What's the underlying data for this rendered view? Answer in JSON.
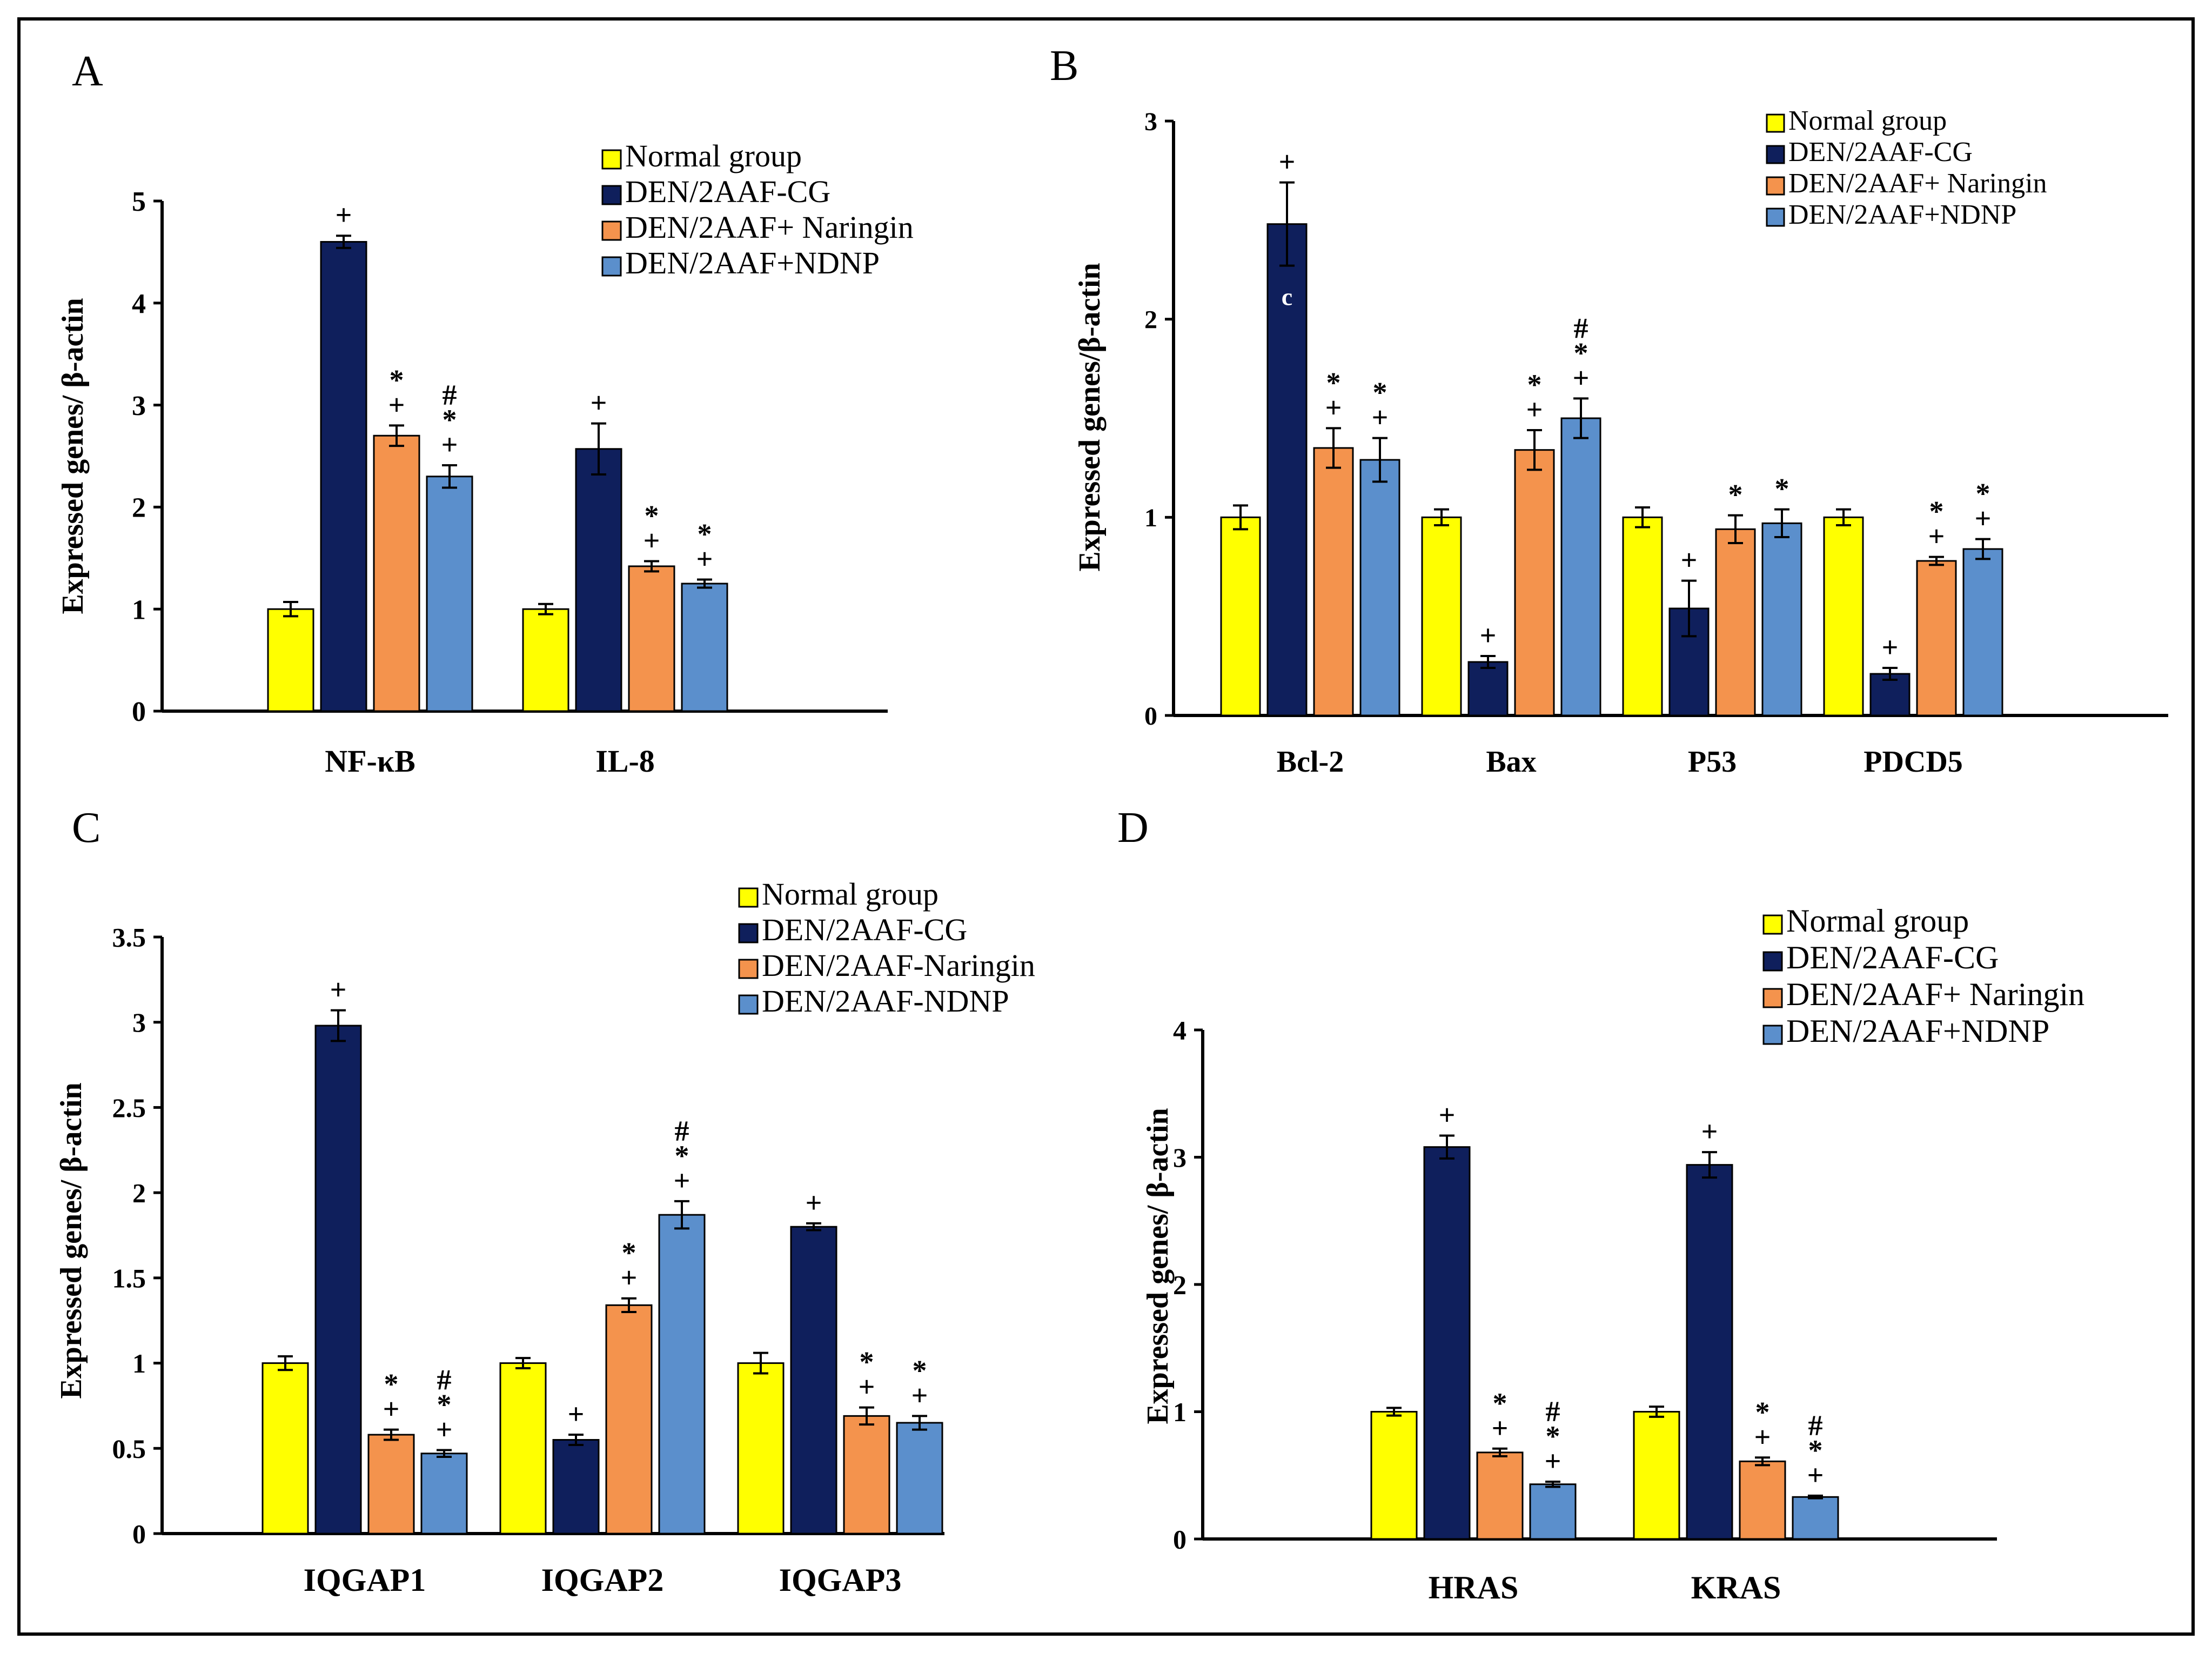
{
  "colors": {
    "normal": "#FFFF00",
    "den_cg": "#0F1F5C",
    "naringin": "#F4934D",
    "ndnp": "#5B8FCC",
    "axis": "#000000"
  },
  "chart_data": [
    {
      "panel": "A",
      "type": "bar",
      "title": "",
      "xlabel": "",
      "ylabel": "Expressed genes/ β-actin",
      "ylim": [
        0,
        5
      ],
      "yticks": [
        "0",
        "1",
        "2",
        "3",
        "4",
        "5"
      ],
      "categories": [
        "NF-κB",
        "IL-8"
      ],
      "legend": [
        "Normal group",
        "DEN/2AAF-CG",
        "DEN/2AAF+ Naringin",
        "DEN/2AAF+NDNP"
      ],
      "series": [
        {
          "name": "Normal group",
          "values": [
            1.0,
            1.0
          ],
          "errors": [
            0.07,
            0.05
          ],
          "annotations": [
            "",
            ""
          ]
        },
        {
          "name": "DEN/2AAF-CG",
          "values": [
            4.6,
            2.57
          ],
          "errors": [
            0.06,
            0.25
          ],
          "annotations": [
            "+",
            "+"
          ]
        },
        {
          "name": "DEN/2AAF+ Naringin",
          "values": [
            2.7,
            1.42
          ],
          "errors": [
            0.1,
            0.05
          ],
          "annotations": [
            "*\n+",
            "*\n+"
          ]
        },
        {
          "name": "DEN/2AAF+NDNP",
          "values": [
            2.3,
            1.25
          ],
          "errors": [
            0.11,
            0.04
          ],
          "annotations": [
            "#\n*\n+",
            "*\n+"
          ]
        }
      ]
    },
    {
      "panel": "B",
      "type": "bar",
      "title": "",
      "xlabel": "",
      "ylabel": "Expressed genes/β-actin",
      "ylim": [
        0,
        3
      ],
      "yticks": [
        "0",
        "1",
        "2",
        "3"
      ],
      "categories": [
        "Bcl-2",
        "Bax",
        "P53",
        "PDCD5"
      ],
      "legend": [
        "Normal group",
        "DEN/2AAF-CG",
        "DEN/2AAF+ Naringin",
        "DEN/2AAF+NDNP"
      ],
      "series": [
        {
          "name": "Normal group",
          "values": [
            1.0,
            1.0,
            1.0,
            1.0
          ],
          "errors": [
            0.06,
            0.04,
            0.05,
            0.04
          ],
          "annotations": [
            "",
            "",
            "",
            ""
          ]
        },
        {
          "name": "DEN/2AAF-CG",
          "values": [
            2.48,
            0.27,
            0.54,
            0.21
          ],
          "errors": [
            0.21,
            0.03,
            0.14,
            0.03
          ],
          "annotations": [
            "+",
            "+",
            "+",
            "+"
          ]
        },
        {
          "name": "DEN/2AAF+ Naringin",
          "values": [
            1.35,
            1.34,
            0.94,
            0.78
          ],
          "errors": [
            0.1,
            0.1,
            0.07,
            0.02
          ],
          "annotations": [
            "*\n+",
            "*\n+",
            "*",
            "*\n+"
          ]
        },
        {
          "name": "DEN/2AAF+NDNP",
          "values": [
            1.29,
            1.5,
            0.97,
            0.84
          ],
          "errors": [
            0.11,
            0.1,
            0.07,
            0.05
          ],
          "annotations": [
            "*\n+",
            "#\n*\n+",
            "*",
            "*\n+"
          ]
        }
      ],
      "inner_labels": [
        {
          "series": 1,
          "category": 0,
          "text": "c"
        }
      ]
    },
    {
      "panel": "C",
      "type": "bar",
      "title": "",
      "xlabel": "",
      "ylabel": "Expressed genes/ β-actin",
      "ylim": [
        0,
        3.5
      ],
      "yticks": [
        "0",
        "0.5",
        "1",
        "1.5",
        "2",
        "2.5",
        "3",
        "3.5"
      ],
      "categories": [
        "IQGAP1",
        "IQGAP2",
        "IQGAP3"
      ],
      "legend": [
        "Normal group",
        "DEN/2AAF-CG",
        "DEN/2AAF-Naringin",
        "DEN/2AAF-NDNP"
      ],
      "series": [
        {
          "name": "Normal group",
          "values": [
            1.0,
            1.0,
            1.0
          ],
          "errors": [
            0.04,
            0.03,
            0.06
          ],
          "annotations": [
            "",
            "",
            ""
          ]
        },
        {
          "name": "DEN/2AAF-CG",
          "values": [
            2.98,
            0.55,
            1.8
          ],
          "errors": [
            0.09,
            0.03,
            0.02
          ],
          "annotations": [
            "+",
            "+",
            "+"
          ]
        },
        {
          "name": "DEN/2AAF-Naringin",
          "values": [
            0.58,
            1.34,
            0.69
          ],
          "errors": [
            0.03,
            0.04,
            0.05
          ],
          "annotations": [
            "*\n+",
            "*\n+",
            "*\n+"
          ]
        },
        {
          "name": "DEN/2AAF-NDNP",
          "values": [
            0.47,
            1.87,
            0.65
          ],
          "errors": [
            0.02,
            0.08,
            0.04
          ],
          "annotations": [
            "#\n*\n+",
            "#\n*\n+",
            "*\n+"
          ]
        }
      ]
    },
    {
      "panel": "D",
      "type": "bar",
      "title": "",
      "xlabel": "",
      "ylabel": "Expressed genes/ β-actin",
      "ylim": [
        0,
        4
      ],
      "yticks": [
        "0",
        "1",
        "2",
        "3",
        "4"
      ],
      "categories": [
        "HRAS",
        "KRAS"
      ],
      "legend": [
        "Normal group",
        "DEN/2AAF-CG",
        "DEN/2AAF+ Naringin",
        "DEN/2AAF+NDNP"
      ],
      "series": [
        {
          "name": "Normal group",
          "values": [
            1.0,
            1.0
          ],
          "errors": [
            0.03,
            0.04
          ],
          "annotations": [
            "",
            ""
          ]
        },
        {
          "name": "DEN/2AAF-CG",
          "values": [
            3.08,
            2.94
          ],
          "errors": [
            0.09,
            0.1
          ],
          "annotations": [
            "+",
            "+"
          ]
        },
        {
          "name": "DEN/2AAF+ Naringin",
          "values": [
            0.68,
            0.61
          ],
          "errors": [
            0.03,
            0.03
          ],
          "annotations": [
            "*\n+",
            "*\n+"
          ]
        },
        {
          "name": "DEN/2AAF+NDNP",
          "values": [
            0.43,
            0.33
          ],
          "errors": [
            0.02,
            0.01
          ],
          "annotations": [
            "#\n*\n+",
            "#\n*\n+"
          ]
        }
      ]
    }
  ]
}
